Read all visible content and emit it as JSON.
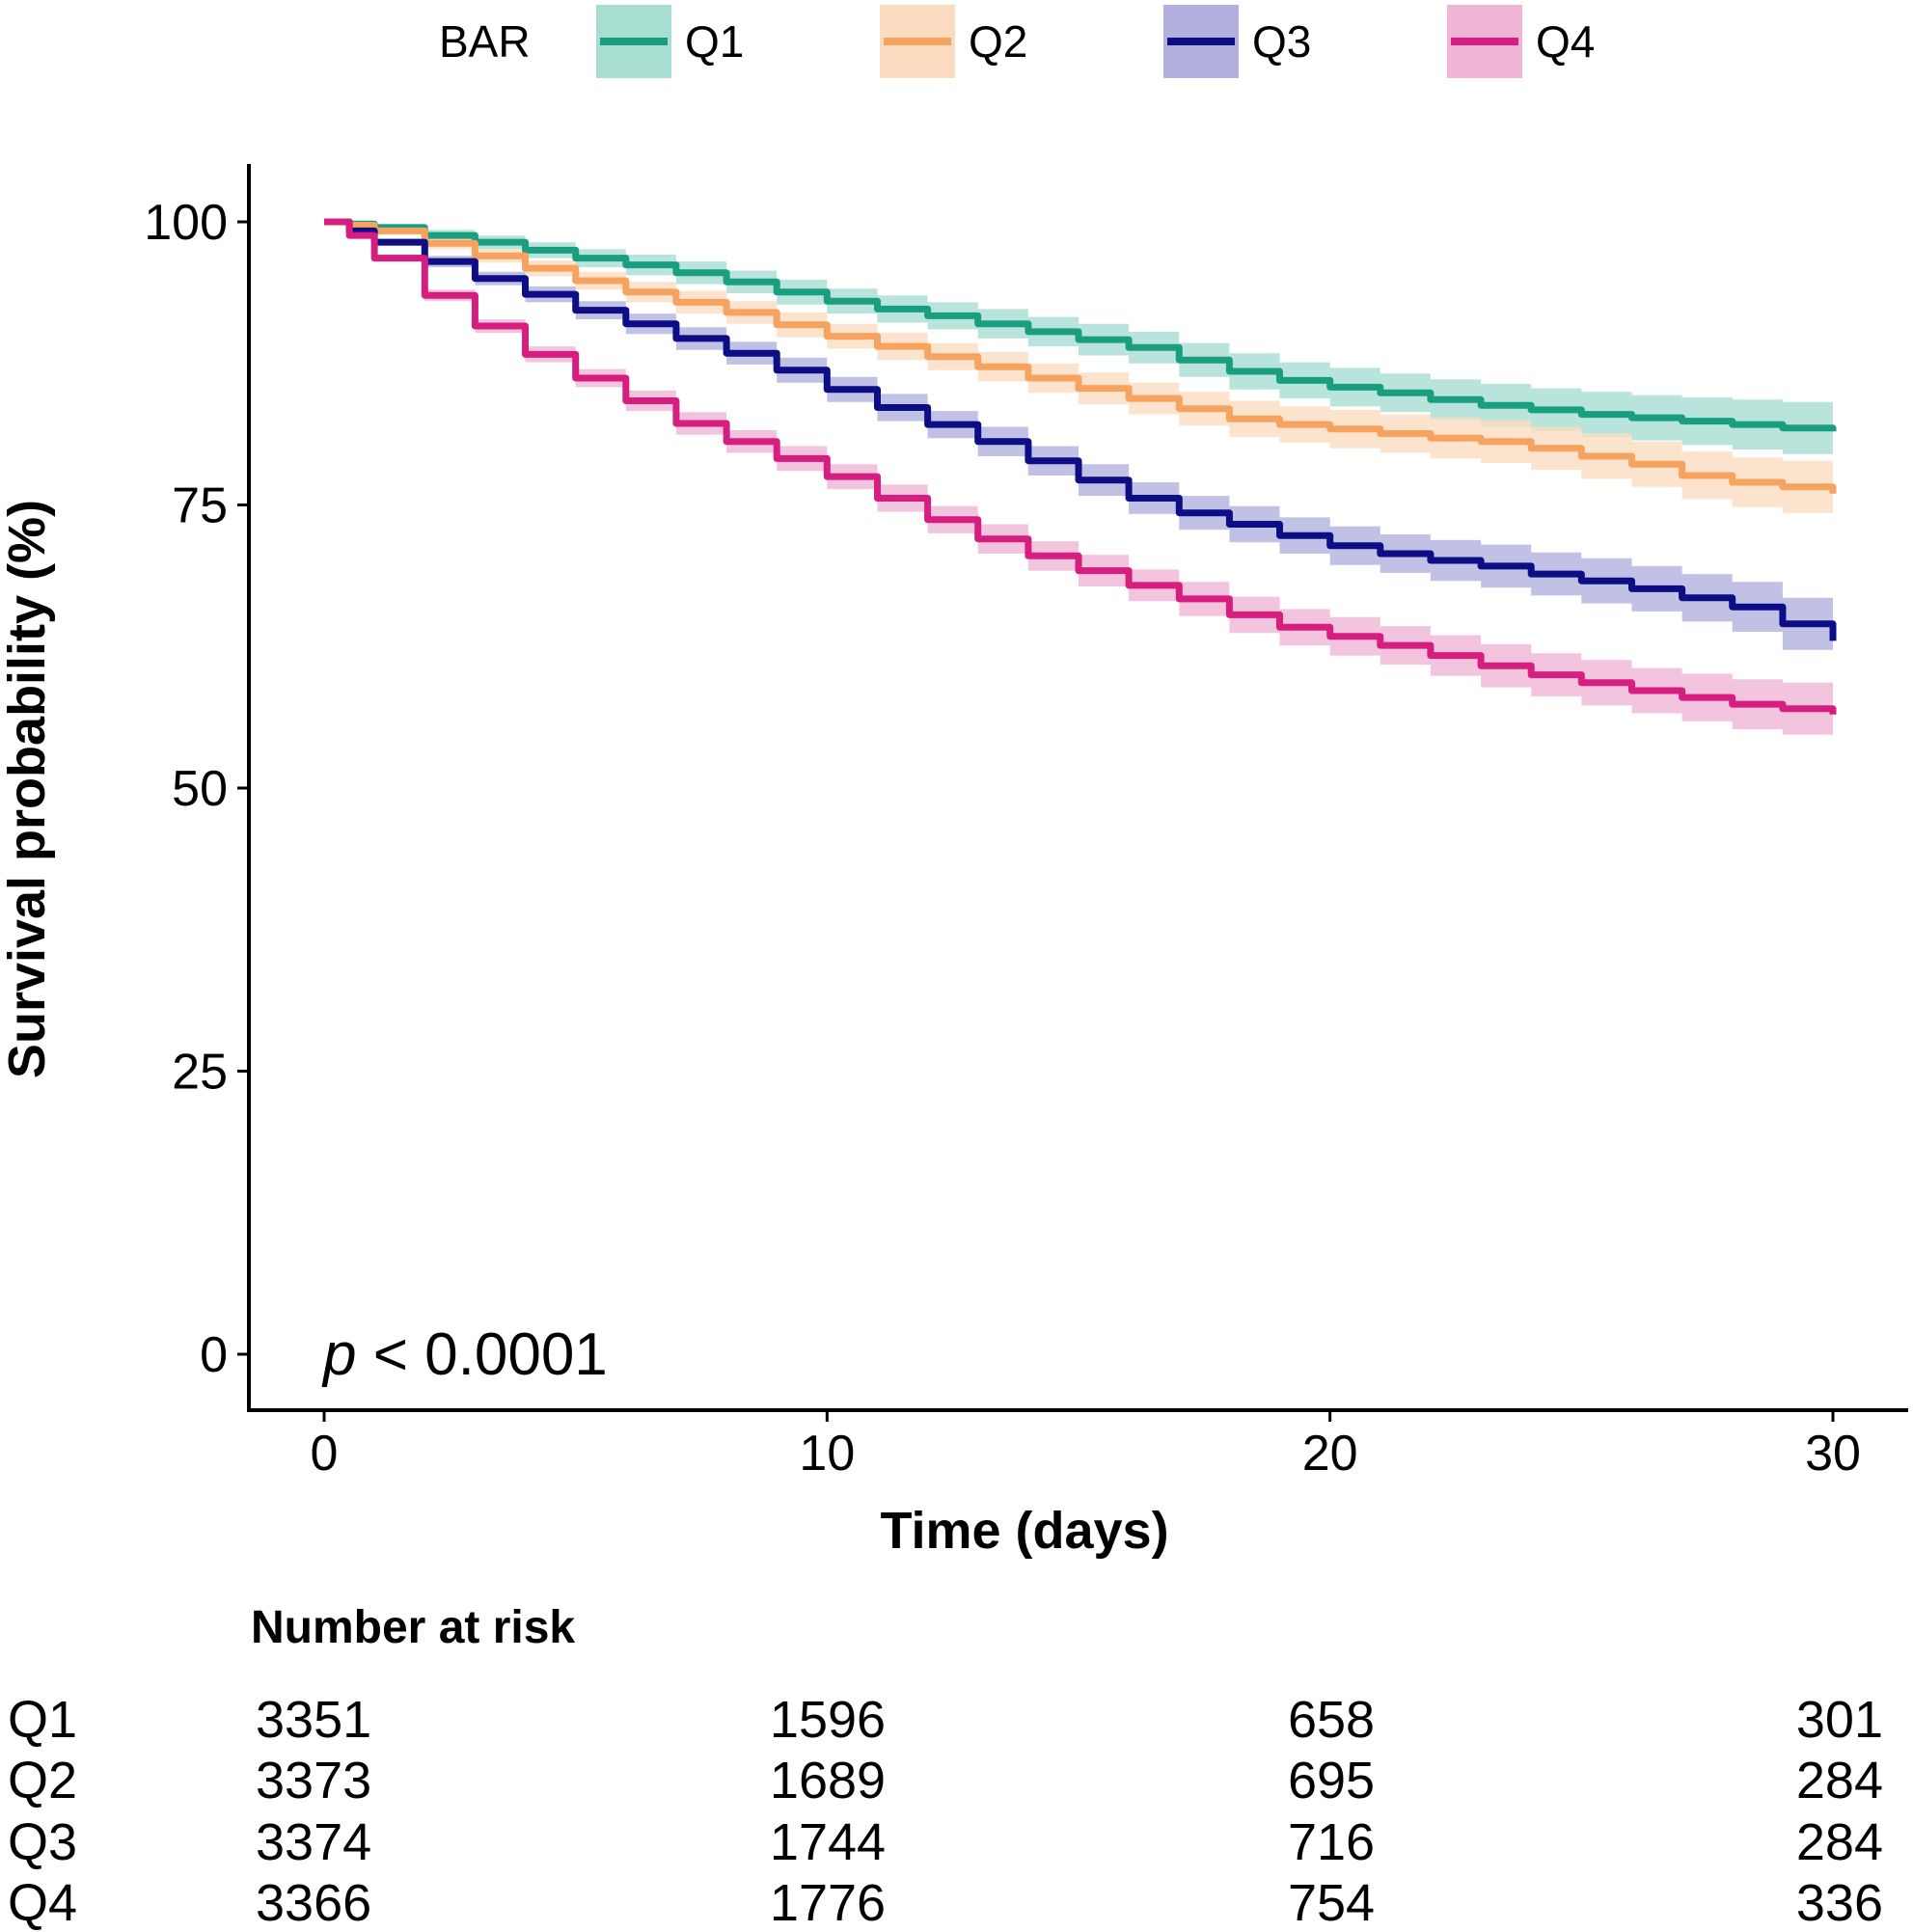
{
  "chart_data": {
    "type": "line",
    "subtype": "kaplan-meier",
    "legend": {
      "title": "BAR",
      "placement": "top",
      "entries": [
        "Q1",
        "Q2",
        "Q3",
        "Q4"
      ]
    },
    "xlabel": "Time (days)",
    "ylabel": "Survival probability (%)",
    "xlim": [
      0,
      30
    ],
    "ylim": [
      0,
      100
    ],
    "xticks": [
      "0",
      "10",
      "20",
      "30"
    ],
    "yticks": [
      "0",
      "25",
      "50",
      "75",
      "100"
    ],
    "annotation": {
      "italic": "p",
      "rest": " < 0.0001"
    },
    "x": [
      0,
      0.5,
      1,
      2,
      3,
      4,
      5,
      6,
      7,
      8,
      9,
      10,
      11,
      12,
      13,
      14,
      15,
      16,
      17,
      18,
      19,
      20,
      21,
      22,
      23,
      24,
      25,
      26,
      27,
      28,
      29,
      30
    ],
    "series": [
      {
        "name": "Q1",
        "color": "#1a9e80",
        "band_color": "#a8ddd2",
        "values": [
          100,
          99.8,
          99.5,
          98.8,
          98.2,
          97.5,
          96.8,
          96.2,
          95.5,
          94.7,
          93.8,
          93.0,
          92.3,
          91.7,
          91.0,
          90.3,
          89.6,
          88.9,
          87.8,
          86.8,
          86.0,
          85.4,
          84.9,
          84.3,
          83.8,
          83.4,
          83.0,
          82.7,
          82.4,
          82.1,
          81.8,
          81.5
        ],
        "ci_width": [
          0,
          0.2,
          0.3,
          0.5,
          0.6,
          0.7,
          0.8,
          0.9,
          1.0,
          1.0,
          1.1,
          1.1,
          1.2,
          1.2,
          1.3,
          1.3,
          1.4,
          1.4,
          1.5,
          1.6,
          1.6,
          1.7,
          1.7,
          1.8,
          1.9,
          1.9,
          2.0,
          2.0,
          2.1,
          2.2,
          2.3,
          2.4
        ]
      },
      {
        "name": "Q2",
        "color": "#f5a35e",
        "band_color": "#fbdcc0",
        "values": [
          100,
          99.7,
          99.2,
          98.1,
          97.0,
          95.9,
          94.8,
          93.8,
          92.9,
          92.0,
          90.9,
          89.9,
          89.0,
          88.1,
          87.2,
          86.2,
          85.3,
          84.4,
          83.5,
          82.6,
          82.1,
          81.7,
          81.3,
          80.9,
          80.6,
          80.0,
          79.3,
          78.6,
          77.6,
          77.0,
          76.6,
          76.0
        ],
        "ci_width": [
          0,
          0.2,
          0.3,
          0.5,
          0.6,
          0.7,
          0.8,
          0.9,
          1.0,
          1.0,
          1.1,
          1.1,
          1.2,
          1.2,
          1.3,
          1.3,
          1.4,
          1.4,
          1.5,
          1.6,
          1.6,
          1.7,
          1.7,
          1.8,
          1.9,
          1.9,
          2.0,
          2.0,
          2.1,
          2.2,
          2.3,
          2.4
        ]
      },
      {
        "name": "Q3",
        "color": "#0d0d85",
        "band_color": "#b1b0df",
        "values": [
          100,
          99.2,
          98.2,
          96.5,
          95.0,
          93.6,
          92.2,
          91.0,
          89.7,
          88.4,
          86.9,
          85.2,
          83.6,
          82.1,
          80.6,
          78.9,
          77.2,
          75.6,
          74.3,
          73.3,
          72.3,
          71.4,
          70.7,
          70.1,
          69.6,
          68.9,
          68.3,
          67.6,
          66.8,
          66.0,
          64.5,
          63.0
        ],
        "ci_width": [
          0,
          0.2,
          0.3,
          0.5,
          0.6,
          0.7,
          0.8,
          0.9,
          1.0,
          1.0,
          1.1,
          1.1,
          1.2,
          1.2,
          1.3,
          1.3,
          1.4,
          1.4,
          1.5,
          1.6,
          1.6,
          1.7,
          1.7,
          1.8,
          1.9,
          1.9,
          2.0,
          2.0,
          2.1,
          2.2,
          2.3,
          2.4
        ]
      },
      {
        "name": "Q4",
        "color": "#d51e7f",
        "band_color": "#f0b5d4",
        "values": [
          100,
          98.8,
          96.8,
          93.5,
          90.8,
          88.3,
          86.2,
          84.2,
          82.2,
          80.6,
          79.1,
          77.5,
          75.6,
          73.7,
          72.0,
          70.5,
          69.2,
          67.9,
          66.7,
          65.3,
          64.2,
          63.4,
          62.6,
          61.7,
          60.8,
          60.0,
          59.3,
          58.6,
          58.0,
          57.4,
          57.0,
          56.5
        ],
        "ci_width": [
          0,
          0.2,
          0.3,
          0.5,
          0.6,
          0.7,
          0.8,
          0.9,
          1.0,
          1.0,
          1.1,
          1.1,
          1.2,
          1.2,
          1.3,
          1.3,
          1.4,
          1.4,
          1.5,
          1.6,
          1.6,
          1.7,
          1.7,
          1.8,
          1.9,
          1.9,
          2.0,
          2.0,
          2.1,
          2.2,
          2.3,
          2.4
        ]
      }
    ],
    "risk_table": {
      "title": "Number at risk",
      "times": [
        0,
        10,
        20,
        30
      ],
      "rows": [
        {
          "label": "Q1",
          "counts": [
            "3351",
            "1596",
            "658",
            "301"
          ]
        },
        {
          "label": "Q2",
          "counts": [
            "3373",
            "1689",
            "695",
            "284"
          ]
        },
        {
          "label": "Q3",
          "counts": [
            "3374",
            "1744",
            "716",
            "284"
          ]
        },
        {
          "label": "Q4",
          "counts": [
            "3366",
            "1776",
            "754",
            "336"
          ]
        }
      ]
    }
  }
}
